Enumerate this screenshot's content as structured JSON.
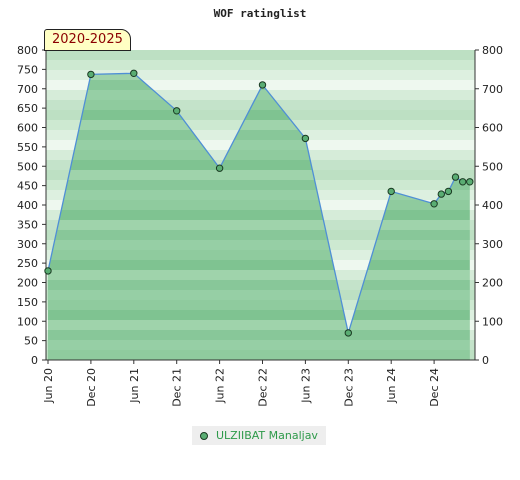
{
  "chart_data": {
    "type": "area",
    "title": "WOF ratinglist",
    "badge": "2020-2025",
    "x_ticks": [
      "Jun 20",
      "Dec 20",
      "Jun 21",
      "Dec 21",
      "Jun 22",
      "Dec 22",
      "Jun 23",
      "Dec 23",
      "Jun 24",
      "Dec 24"
    ],
    "ylim_left": [
      0,
      800
    ],
    "ylim_right": [
      0,
      800
    ],
    "y_ticks_left": [
      0,
      50,
      100,
      150,
      200,
      250,
      300,
      350,
      400,
      450,
      500,
      550,
      600,
      650,
      700,
      750,
      800
    ],
    "y_ticks_right": [
      0,
      100,
      200,
      300,
      400,
      500,
      600,
      700,
      800
    ],
    "series": [
      {
        "name": "ULZIIBAT Manaljav",
        "points": [
          {
            "x": "2020-06",
            "y": 230
          },
          {
            "x": "2020-12",
            "y": 737
          },
          {
            "x": "2021-06",
            "y": 740
          },
          {
            "x": "2021-12",
            "y": 643
          },
          {
            "x": "2022-06",
            "y": 495
          },
          {
            "x": "2022-12",
            "y": 710
          },
          {
            "x": "2023-06",
            "y": 572
          },
          {
            "x": "2023-12",
            "y": 70
          },
          {
            "x": "2024-06",
            "y": 435
          },
          {
            "x": "2024-12",
            "y": 403
          },
          {
            "x": "2025-01",
            "y": 428
          },
          {
            "x": "2025-02",
            "y": 435
          },
          {
            "x": "2025-03",
            "y": 472
          },
          {
            "x": "2025-04",
            "y": 460
          },
          {
            "x": "2025-05",
            "y": 460
          }
        ]
      }
    ],
    "colors": {
      "line": "#4f8fd6",
      "area": "#3c9d57",
      "marker": "#5aad73",
      "marker_stroke": "#1a3a22"
    },
    "legend_position": "bottom-center"
  }
}
